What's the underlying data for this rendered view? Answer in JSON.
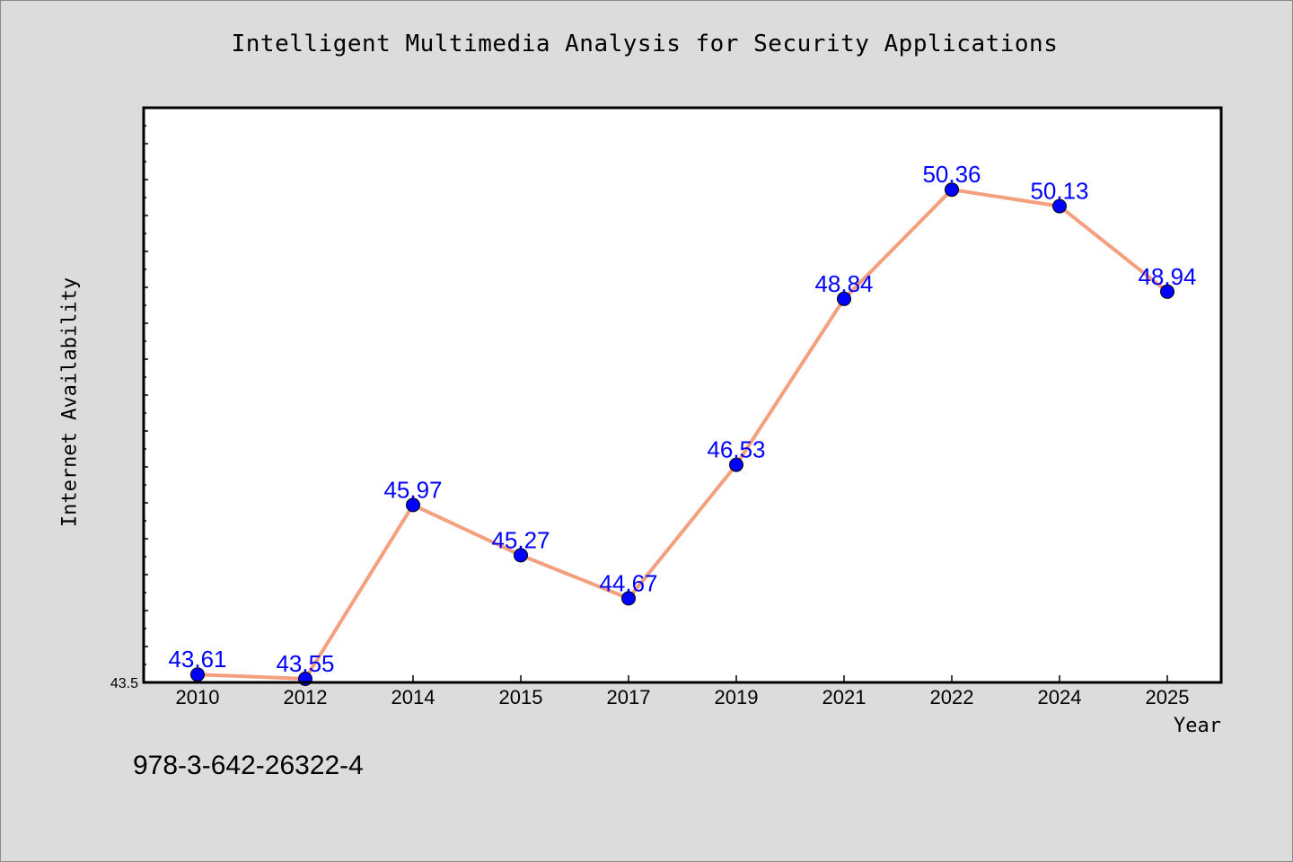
{
  "chart_data": {
    "type": "line",
    "title": "Intelligent Multimedia Analysis for Security Applications",
    "xlabel": "Year",
    "ylabel": "Internet Availability",
    "categories": [
      "2010",
      "2012",
      "2014",
      "2015",
      "2017",
      "2019",
      "2021",
      "2022",
      "2024",
      "2025"
    ],
    "series": [
      {
        "values": [
          43.61,
          43.55,
          45.97,
          45.27,
          44.67,
          46.53,
          48.84,
          50.36,
          50.13,
          48.94
        ],
        "labels": [
          "43.61",
          "43.55",
          "45.97",
          "45.27",
          "44.67",
          "46.53",
          "48.84",
          "50.36",
          "50.13",
          "48.94"
        ],
        "line_color": "#f4a07e",
        "marker_color": "#0000ff"
      }
    ],
    "ylim": [
      43.5,
      51.5
    ],
    "ytick_labels": [
      "43.5"
    ],
    "grid": false,
    "legend": "none"
  },
  "footnote": "978-3-642-26322-4",
  "colors": {
    "background": "#dcdcdc",
    "plot_background": "#ffffff",
    "line": "#f4a07e",
    "marker": "#0000ff",
    "data_label": "#0000ff"
  }
}
